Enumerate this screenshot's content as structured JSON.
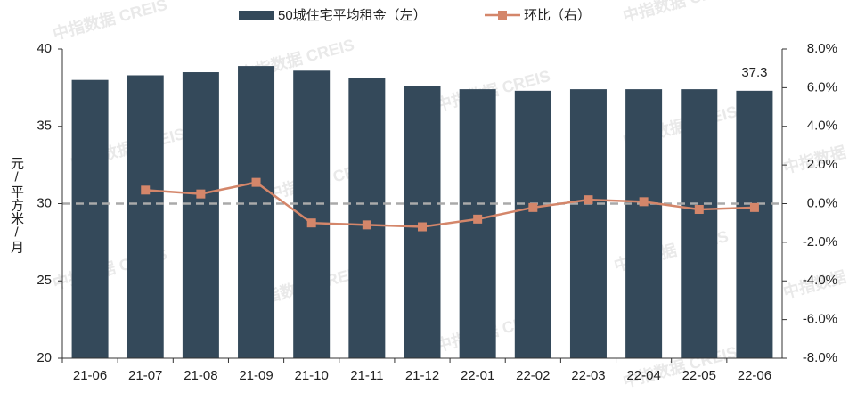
{
  "chart_data": {
    "type": "bar_line",
    "watermark": "中指数据 CREIS",
    "y_label": "元/平方米/月",
    "categories": [
      "21-06",
      "21-07",
      "21-08",
      "21-09",
      "21-10",
      "21-11",
      "21-12",
      "22-01",
      "22-02",
      "22-03",
      "22-04",
      "22-05",
      "22-06"
    ],
    "series": [
      {
        "name": "50城住宅平均租金（左）",
        "type": "bar",
        "color": "#34495a",
        "values": [
          38.0,
          38.3,
          38.5,
          38.9,
          38.6,
          38.1,
          37.6,
          37.4,
          37.3,
          37.4,
          37.4,
          37.4,
          37.3
        ],
        "value_labels": [
          null,
          null,
          null,
          null,
          null,
          null,
          null,
          null,
          null,
          null,
          null,
          null,
          "37.3"
        ]
      },
      {
        "name": "环比（右）",
        "type": "line",
        "axis": "y2",
        "color": "#d4866a",
        "values": [
          null,
          0.7,
          0.5,
          1.1,
          -1.0,
          -1.1,
          -1.2,
          -0.8,
          -0.2,
          0.2,
          0.1,
          -0.3,
          -0.2
        ]
      }
    ],
    "ylim": [
      20,
      40
    ],
    "yticks": [
      20,
      25,
      30,
      35,
      40
    ],
    "y2lim": [
      -8,
      8
    ],
    "y2ticks": [
      {
        "value": -8,
        "label": "-8.0%"
      },
      {
        "value": -6,
        "label": "-6.0%"
      },
      {
        "value": -4,
        "label": "-4.0%"
      },
      {
        "value": -2,
        "label": "-2.0%"
      },
      {
        "value": 0,
        "label": "0.0%"
      },
      {
        "value": 2,
        "label": "2.0%"
      },
      {
        "value": 4,
        "label": "4.0%"
      },
      {
        "value": 6,
        "label": "6.0%"
      },
      {
        "value": 8,
        "label": "8.0%"
      }
    ],
    "legend": "top"
  }
}
